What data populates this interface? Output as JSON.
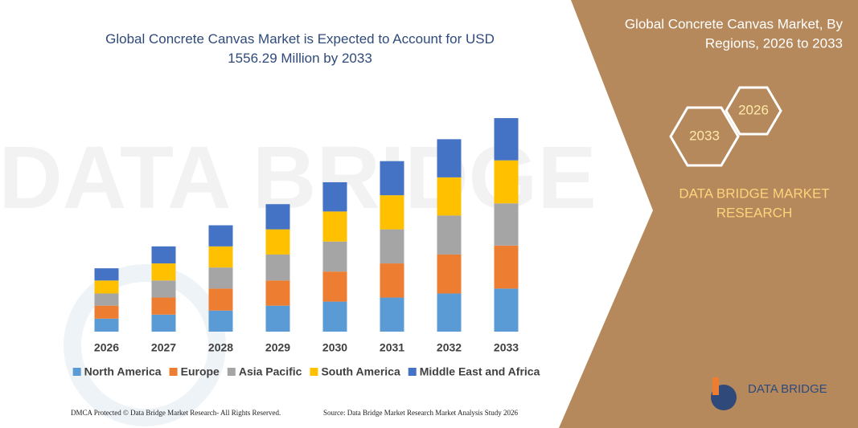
{
  "chart_data": {
    "type": "bar",
    "stacked": true,
    "title": "Global Concrete Canvas Market is Expected to Account for USD 1556.29 Million by 2033",
    "categories": [
      "2026",
      "2027",
      "2028",
      "2029",
      "2030",
      "2031",
      "2032",
      "2033"
    ],
    "series": [
      {
        "name": "North America",
        "color": "#5b9bd5",
        "values": [
          16,
          21,
          26,
          32,
          37,
          42,
          47,
          53
        ]
      },
      {
        "name": "Europe",
        "color": "#ed7d31",
        "values": [
          16,
          21,
          27,
          31,
          37,
          42,
          48,
          53
        ]
      },
      {
        "name": "Asia Pacific",
        "color": "#a5a5a5",
        "values": [
          15,
          21,
          26,
          32,
          37,
          42,
          48,
          52
        ]
      },
      {
        "name": "South America",
        "color": "#ffc000",
        "values": [
          16,
          21,
          26,
          31,
          37,
          42,
          47,
          53
        ]
      },
      {
        "name": "Middle East and Africa",
        "color": "#4472c4",
        "values": [
          15,
          21,
          26,
          31,
          36,
          42,
          47,
          52
        ]
      }
    ],
    "ylim": [
      0,
      270
    ],
    "legend": "bottom"
  },
  "sidebar": {
    "title_line1": "Global Concrete Canvas Market, By",
    "title_line2": "Regions, 2026 to 2033",
    "hex_small": "2026",
    "hex_large": "2033",
    "brand_line1": "DATA BRIDGE MARKET",
    "brand_line2": "RESEARCH",
    "logo": "DATA BRIDGE"
  },
  "footer": {
    "left": "DMCA Protected © Data Bridge Market Research- All Rights Reserved.",
    "right": "Source: Data Bridge Market Research Market Analysis Study 2026"
  }
}
